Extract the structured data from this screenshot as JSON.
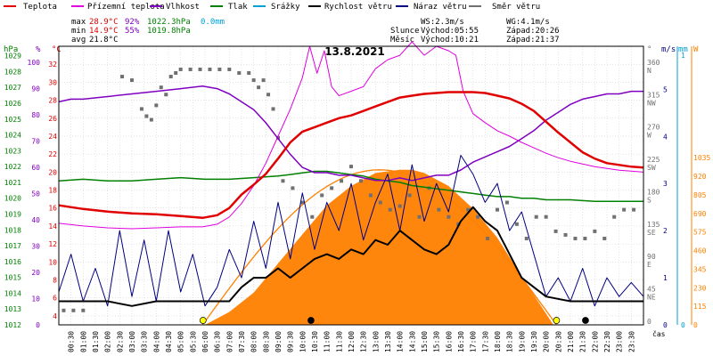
{
  "chart_data": {
    "type": "line",
    "title": "13.8.2021",
    "x_label": "čas",
    "x_ticks": [
      "00:30",
      "01:00",
      "01:30",
      "02:00",
      "02:30",
      "03:00",
      "03:30",
      "04:00",
      "04:30",
      "05:00",
      "05:30",
      "06:00",
      "06:30",
      "07:00",
      "07:30",
      "08:00",
      "08:30",
      "09:00",
      "09:30",
      "10:00",
      "10:30",
      "11:00",
      "11:30",
      "12:00",
      "12:30",
      "13:00",
      "13:30",
      "14:00",
      "14:30",
      "15:00",
      "15:30",
      "16:00",
      "16:30",
      "17:00",
      "17:30",
      "18:00",
      "18:30",
      "19:00",
      "19:30",
      "20:00",
      "20:30",
      "21:00",
      "21:30",
      "22:00",
      "22:30",
      "23:00",
      "23:30"
    ],
    "legend": [
      {
        "name": "Teplota",
        "color": "#e00000"
      },
      {
        "name": "Přízemní teplota",
        "color": "#e000e0"
      },
      {
        "name": "Vlhkost",
        "color": "#8000c0"
      },
      {
        "name": "Tlak",
        "color": "#008000"
      },
      {
        "name": "Srážky",
        "color": "#00a0d0"
      },
      {
        "name": "Rychlost větru",
        "color": "#000000"
      },
      {
        "name": "Náraz větru",
        "color": "#000080"
      },
      {
        "name": "Směr větru",
        "color": "#707070"
      }
    ],
    "stats": {
      "max_label": "max",
      "max_temp": "28.9°C",
      "max_hum": "92%",
      "max_press": "1022.3hPa",
      "max_rain": "0.0mm",
      "min_label": "min",
      "min_temp": "14.9°C",
      "min_hum": "55%",
      "min_press": "1019.8hPa",
      "avg_label": "avg",
      "avg_temp": "21.8°C"
    },
    "info": {
      "ws": "WS:2.3m/s",
      "wg": "WG:4.1m/s",
      "sun_label": "Slunce",
      "sunrise": "Východ:05:55",
      "sunset": "Západ:20:26",
      "moon_label": "Měsíc",
      "moonrise": "Východ:10:21",
      "moonset": "Západ:21:37"
    },
    "axes": {
      "hpa_unit": "hPa",
      "hpa_ticks": [
        "1029",
        "1028",
        "1027",
        "1026",
        "1025",
        "1024",
        "1023",
        "1022",
        "1021",
        "1020",
        "1019",
        "1018",
        "1017",
        "1016",
        "1015",
        "1014",
        "1013",
        "1012"
      ],
      "pct_unit": "%",
      "pct_ticks": [
        "100",
        "90",
        "80",
        "70",
        "60",
        "50",
        "40",
        "30",
        "20",
        "10",
        "0"
      ],
      "temp_unit": "°C",
      "temp_ticks": [
        "32",
        "30",
        "28",
        "26",
        "24",
        "22",
        "20",
        "18",
        "16",
        "14",
        "12",
        "10",
        "8",
        "6",
        "4"
      ],
      "dir_unit": "°",
      "dir_ticks": [
        {
          "deg": "360",
          "lbl": "N"
        },
        {
          "deg": "315",
          "lbl": "NW"
        },
        {
          "deg": "270",
          "lbl": "W"
        },
        {
          "deg": "225",
          "lbl": "SW"
        },
        {
          "deg": "180",
          "lbl": "S"
        },
        {
          "deg": "135",
          "lbl": "SE"
        },
        {
          "deg": "90",
          "lbl": "E"
        },
        {
          "deg": "45",
          "lbl": "NE"
        },
        {
          "deg": "0",
          "lbl": ""
        }
      ],
      "ms_unit": "m/s",
      "ms_ticks": [
        "5",
        "4",
        "3",
        "2",
        "1",
        "0"
      ],
      "mm_unit": "mm",
      "mm_ticks": [
        "1",
        "0"
      ],
      "w_unit": "W",
      "w_ticks": [
        "1035",
        "920",
        "805",
        "690",
        "575",
        "460",
        "345",
        "230",
        "115",
        "0"
      ]
    },
    "temp_ylim": [
      3,
      34
    ],
    "series": {
      "temperature": {
        "times": [
          0,
          1,
          2,
          3,
          4,
          5,
          5.9,
          6.5,
          7,
          7.5,
          8,
          8.5,
          9,
          9.5,
          10,
          10.5,
          11,
          11.5,
          12,
          12.5,
          13,
          13.5,
          14,
          14.5,
          15,
          15.5,
          16,
          16.5,
          17,
          17.5,
          18,
          18.5,
          19,
          19.5,
          20,
          20.5,
          21,
          21.5,
          22,
          22.5,
          23,
          23.5,
          24
        ],
        "values": [
          16.3,
          15.9,
          15.6,
          15.4,
          15.3,
          15.1,
          14.9,
          15.2,
          16.0,
          17.5,
          18.6,
          19.8,
          21.5,
          23.3,
          24.5,
          25.0,
          25.5,
          26.0,
          26.3,
          26.8,
          27.3,
          27.8,
          28.3,
          28.5,
          28.7,
          28.8,
          28.9,
          28.9,
          28.9,
          28.8,
          28.5,
          28.2,
          27.6,
          26.8,
          25.6,
          24.4,
          23.3,
          22.2,
          21.5,
          21.0,
          20.8,
          20.6,
          20.5
        ]
      },
      "ground_temp": {
        "times": [
          0,
          1,
          2,
          3,
          4,
          5,
          5.9,
          6.5,
          7,
          7.5,
          8,
          8.5,
          9,
          9.5,
          10,
          10.3,
          10.6,
          10.9,
          11.2,
          11.5,
          12,
          12.5,
          13,
          13.5,
          14,
          14.5,
          15,
          15.5,
          16,
          16.3,
          16.6,
          17,
          17.5,
          18,
          18.5,
          19,
          19.5,
          20,
          20.5,
          21,
          21.5,
          22,
          22.5,
          23,
          23.5,
          24
        ],
        "values": [
          14.3,
          14.0,
          13.8,
          13.7,
          13.8,
          13.9,
          13.9,
          14.2,
          15.0,
          16.5,
          18.5,
          21.0,
          24.0,
          27.0,
          30.5,
          34.0,
          31.0,
          33.5,
          29.5,
          28.5,
          29.0,
          29.5,
          31.5,
          32.5,
          33.0,
          34.5,
          33.0,
          34.0,
          33.5,
          33.0,
          29.0,
          26.5,
          25.5,
          24.6,
          24.0,
          23.3,
          22.7,
          22.1,
          21.6,
          21.2,
          20.9,
          20.6,
          20.4,
          20.2,
          20.1,
          20.0
        ]
      },
      "humidity": {
        "times": [
          0,
          0.5,
          1,
          2,
          3,
          4,
          5,
          5.9,
          6.5,
          7,
          7.5,
          8,
          8.5,
          9,
          9.5,
          10,
          10.5,
          11,
          11.5,
          12,
          12.5,
          13,
          13.5,
          14,
          14.5,
          15,
          15.5,
          16,
          16.5,
          17,
          17.5,
          18,
          18.5,
          19,
          19.5,
          20,
          20.5,
          21,
          21.5,
          22,
          22.5,
          23,
          23.5,
          24
        ],
        "values": [
          85,
          86,
          86,
          87,
          88,
          89,
          90,
          91,
          90,
          88,
          85,
          82,
          77,
          71,
          65,
          60,
          58,
          58,
          57,
          57,
          56,
          55,
          55,
          56,
          55,
          56,
          57,
          57,
          59,
          62,
          64,
          66,
          68,
          71,
          74,
          78,
          81,
          84,
          86,
          87,
          88,
          88,
          89,
          89
        ]
      },
      "pressure": {
        "times": [
          0,
          1,
          2,
          3,
          4,
          5,
          6,
          7,
          8,
          9,
          9.5,
          10,
          10.5,
          11,
          11.5,
          12,
          12.5,
          13,
          13.5,
          14,
          14.5,
          15,
          15.5,
          16,
          16.5,
          17,
          17.5,
          18,
          18.5,
          19,
          19.5,
          20,
          20.5,
          21,
          22,
          23,
          24
        ],
        "values": [
          1021.1,
          1021.2,
          1021.1,
          1021.1,
          1021.2,
          1021.3,
          1021.2,
          1021.2,
          1021.3,
          1021.4,
          1021.5,
          1021.6,
          1021.7,
          1021.7,
          1021.6,
          1021.5,
          1021.4,
          1021.2,
          1021.1,
          1021.0,
          1020.8,
          1020.7,
          1020.6,
          1020.5,
          1020.4,
          1020.3,
          1020.2,
          1020.1,
          1020.1,
          1020.0,
          1020.0,
          1019.9,
          1019.9,
          1019.9,
          1019.8,
          1019.8,
          1019.8
        ]
      },
      "solar": {
        "times": [
          6,
          7,
          8,
          9,
          10,
          11,
          12,
          13,
          14,
          14.5,
          15,
          16,
          17,
          18,
          19,
          20.3
        ],
        "values": [
          0,
          80,
          200,
          380,
          560,
          740,
          860,
          940,
          960,
          960,
          940,
          860,
          720,
          540,
          300,
          0
        ]
      },
      "wind_dir_samples": {
        "times": [
          0.2,
          0.6,
          1.0,
          2.6,
          3.0,
          3.4,
          3.6,
          3.8,
          4.0,
          4.2,
          4.4,
          4.6,
          4.8,
          5.0,
          5.4,
          5.8,
          6.2,
          6.6,
          7.0,
          7.4,
          7.8,
          8.0,
          8.2,
          8.4,
          8.6,
          8.8,
          9.0,
          9.2,
          9.6,
          10.0,
          10.4,
          10.8,
          11.2,
          11.6,
          12.0,
          12.4,
          12.8,
          13.2,
          13.6,
          14.0,
          14.4,
          14.8,
          15.2,
          15.6,
          16.0,
          16.4,
          16.8,
          17.2,
          17.6,
          18.0,
          18.4,
          18.8,
          19.2,
          19.6,
          20.0,
          20.4,
          20.8,
          21.2,
          21.6,
          22.0,
          22.4,
          22.8,
          23.2,
          23.6
        ],
        "values": [
          20,
          20,
          20,
          345,
          340,
          300,
          290,
          285,
          305,
          330,
          320,
          345,
          350,
          355,
          355,
          355,
          355,
          355,
          355,
          350,
          350,
          340,
          330,
          340,
          320,
          300,
          260,
          200,
          190,
          170,
          150,
          180,
          190,
          200,
          220,
          200,
          180,
          170,
          160,
          165,
          180,
          150,
          190,
          160,
          150,
          140,
          160,
          150,
          120,
          160,
          170,
          140,
          120,
          150,
          150,
          130,
          125,
          120,
          120,
          130,
          120,
          150,
          160,
          160
        ]
      },
      "wind_speed": {
        "times": [
          0,
          1,
          2,
          3,
          4,
          5,
          6,
          7,
          7.5,
          8,
          8.5,
          9,
          9.5,
          10,
          10.5,
          11,
          11.5,
          12,
          12.5,
          13,
          13.5,
          14,
          14.5,
          15,
          15.5,
          16,
          16.5,
          17,
          17.5,
          18,
          18.5,
          19,
          19.5,
          20,
          21,
          22,
          23,
          24
        ],
        "values": [
          0.5,
          0.5,
          0.5,
          0.4,
          0.5,
          0.5,
          0.5,
          0.5,
          0.8,
          1.0,
          1.0,
          1.2,
          1.0,
          1.2,
          1.4,
          1.5,
          1.4,
          1.6,
          1.5,
          1.8,
          1.7,
          2.0,
          1.8,
          1.6,
          1.5,
          1.7,
          2.2,
          2.5,
          2.2,
          2.0,
          1.5,
          1.0,
          0.8,
          0.6,
          0.5,
          0.5,
          0.5,
          0.5
        ]
      },
      "wind_gust": {
        "times": [
          0,
          0.5,
          1,
          1.5,
          2,
          2.5,
          3,
          3.5,
          4,
          4.5,
          5,
          5.5,
          6,
          6.5,
          7,
          7.5,
          8,
          8.5,
          9,
          9.5,
          10,
          10.5,
          11,
          11.5,
          12,
          12.5,
          13,
          13.5,
          14,
          14.5,
          15,
          15.5,
          16,
          16.5,
          17,
          17.5,
          18,
          18.5,
          19,
          19.5,
          20,
          20.5,
          21,
          21.5,
          22,
          22.5,
          23,
          23.5,
          24
        ],
        "values": [
          0.7,
          1.5,
          0.5,
          1.2,
          0.4,
          2.0,
          0.6,
          1.8,
          0.5,
          2.0,
          0.7,
          1.5,
          0.4,
          0.8,
          1.6,
          1.0,
          2.2,
          1.2,
          2.6,
          1.4,
          2.8,
          1.6,
          2.6,
          2.0,
          3.0,
          1.8,
          2.6,
          3.2,
          2.0,
          3.4,
          2.2,
          3.0,
          2.4,
          3.6,
          3.2,
          2.6,
          3.0,
          2.0,
          2.4,
          1.5,
          0.6,
          1.0,
          0.5,
          1.2,
          0.4,
          1.0,
          0.6,
          0.9,
          0.6
        ]
      },
      "sun_path_peak_w": 960,
      "sun_path_times": [
        5.9,
        20.43
      ],
      "markers": [
        {
          "name": "sunrise",
          "time": 5.92,
          "color": "#ffff00"
        },
        {
          "name": "moonrise",
          "time": 10.35,
          "color": "#000000"
        },
        {
          "name": "sunset",
          "time": 20.43,
          "color": "#ffff00"
        },
        {
          "name": "moonset",
          "time": 21.62,
          "color": "#000000"
        }
      ]
    },
    "colors": {
      "temperature": "#e00000",
      "ground_temp": "#e000e0",
      "humidity": "#8000c0",
      "pressure": "#008000",
      "rain": "#00a0d0",
      "wind_speed": "#000000",
      "wind_gust": "#000080",
      "wind_dir": "#707070",
      "solar": "#ff8000",
      "grid": "#c8c8c8",
      "frame": "#000000"
    }
  }
}
